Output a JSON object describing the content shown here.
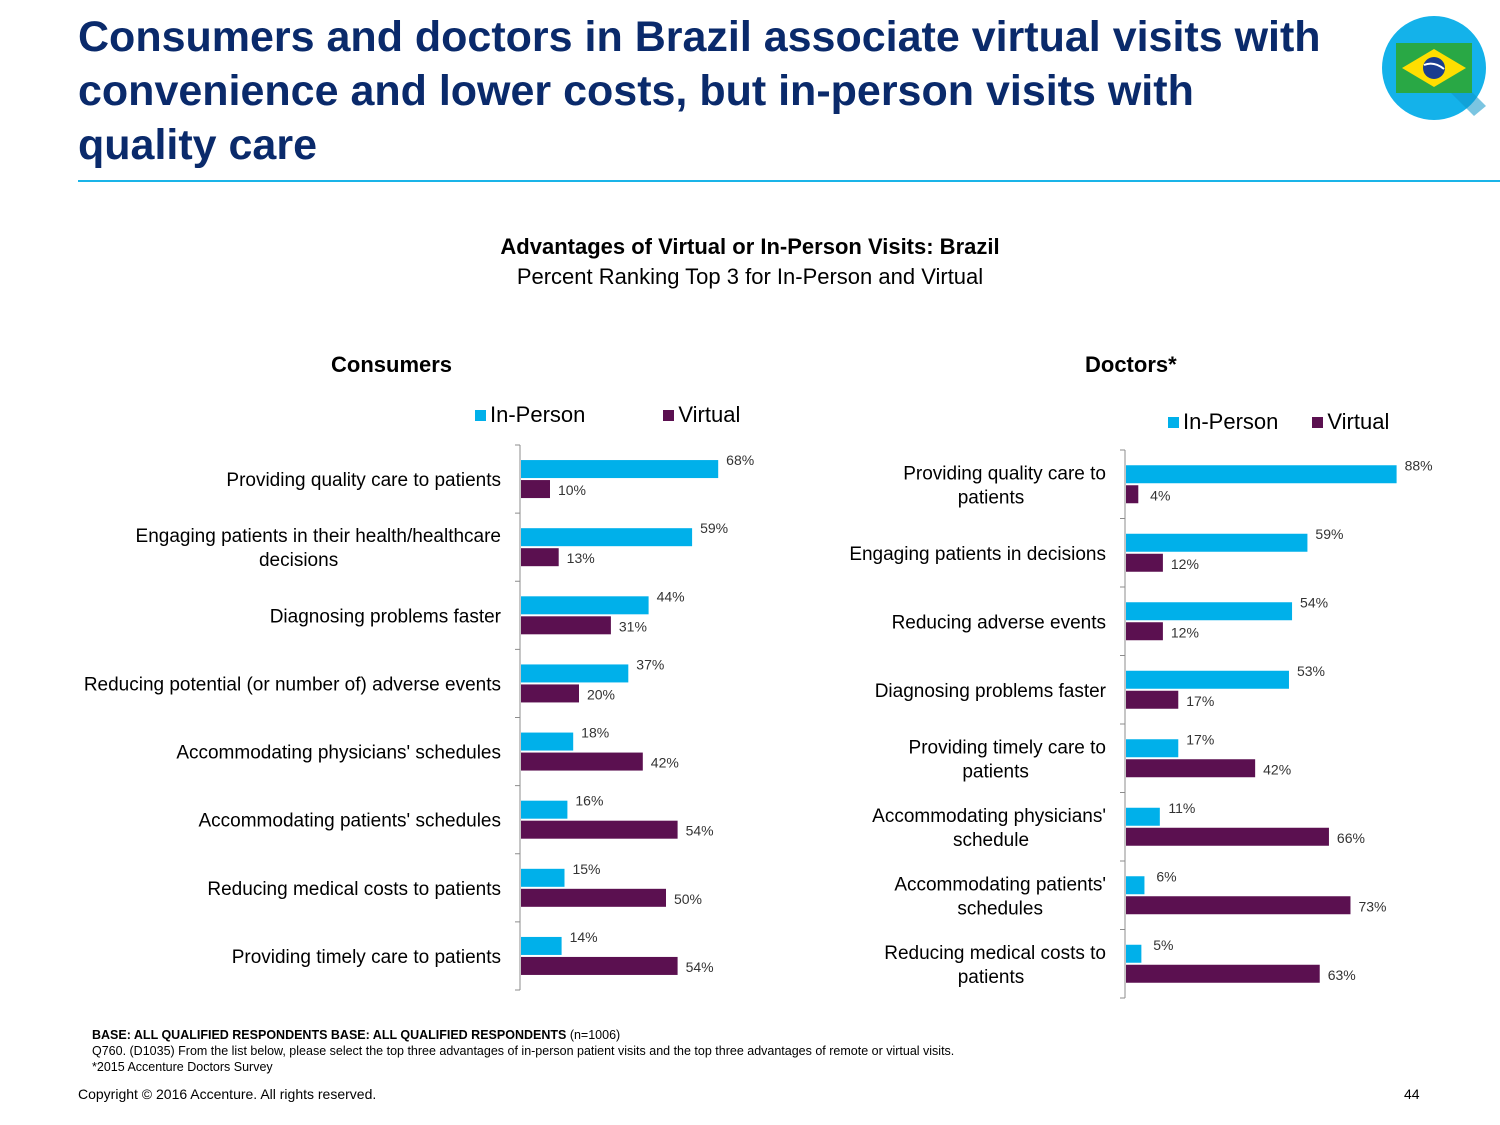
{
  "slide": {
    "title": "Consumers and doctors in Brazil associate virtual visits with convenience and lower costs, but in-person visits with quality care",
    "flag_icon": "brazil-flag-icon"
  },
  "heading": {
    "title": "Advantages of Virtual or In-Person Visits: Brazil",
    "subtitle": "Percent Ranking Top 3 for In-Person and Virtual"
  },
  "colors": {
    "in_person": "#00b0ea",
    "virtual": "#5b1050",
    "accent_rule": "#1ab4e8",
    "title": "#0a2a6b"
  },
  "chart_data": [
    {
      "type": "bar",
      "orientation": "horizontal",
      "title": "Consumers",
      "legend": [
        "In-Person",
        "Virtual"
      ],
      "legend_position": "top",
      "categories": [
        "Providing quality care to patients",
        "Engaging patients in their health/healthcare decisions",
        "Diagnosing problems faster",
        "Reducing potential (or number of) adverse events",
        "Accommodating physicians' schedules",
        "Accommodating patients' schedules",
        "Reducing medical costs to patients",
        "Providing timely care to patients"
      ],
      "series": [
        {
          "name": "In-Person",
          "values": [
            68,
            59,
            44,
            37,
            18,
            16,
            15,
            14
          ]
        },
        {
          "name": "Virtual",
          "values": [
            10,
            13,
            31,
            20,
            42,
            54,
            50,
            54
          ]
        }
      ],
      "value_suffix": "%",
      "xlim": [
        0,
        100
      ],
      "grid": false
    },
    {
      "type": "bar",
      "orientation": "horizontal",
      "title": "Doctors*",
      "legend": [
        "In-Person",
        "Virtual"
      ],
      "legend_position": "top",
      "categories": [
        "Providing quality care to patients",
        "Engaging patients in decisions",
        "Reducing adverse events",
        "Diagnosing problems faster",
        "Providing timely care to patients",
        "Accommodating physicians' schedule",
        "Accommodating patients' schedules",
        "Reducing medical costs to patients"
      ],
      "series": [
        {
          "name": "In-Person",
          "values": [
            88,
            59,
            54,
            53,
            17,
            11,
            6,
            5
          ]
        },
        {
          "name": "Virtual",
          "values": [
            4,
            12,
            12,
            17,
            42,
            66,
            73,
            63
          ]
        }
      ],
      "value_suffix": "%",
      "xlim": [
        0,
        100
      ],
      "grid": false
    }
  ],
  "footnotes": {
    "base_bold": "BASE: ALL QUALIFIED RESPONDENTS BASE: ALL QUALIFIED RESPONDENTS",
    "base_n": " (n=1006)",
    "question": "Q760. (D1035)  From the list below, please select the top three advantages of in-person patient visits and the top three advantages of remote or virtual visits.",
    "source": "*2015 Accenture Doctors Survey"
  },
  "footer": {
    "copyright": "Copyright © 2016 Accenture. All rights reserved.",
    "page_number": "44"
  }
}
